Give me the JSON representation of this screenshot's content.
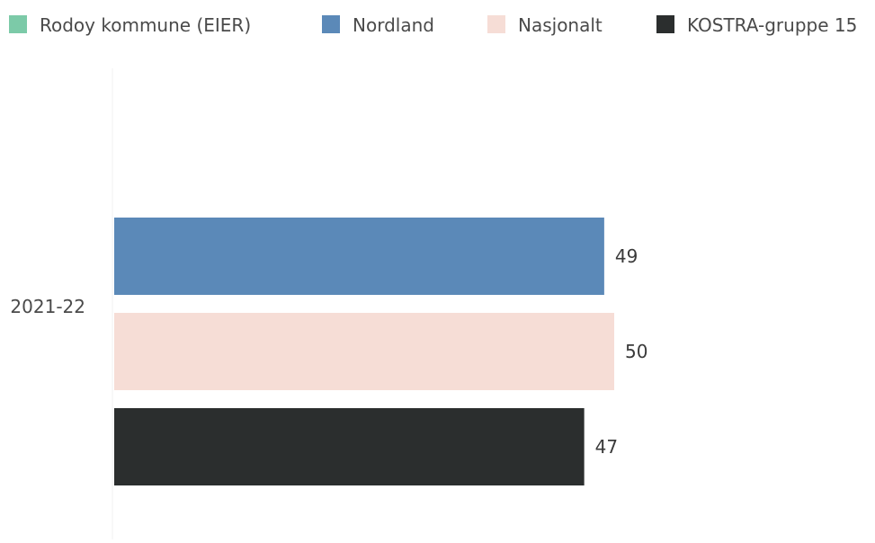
{
  "chart_data": {
    "type": "bar",
    "orientation": "horizontal",
    "categories": [
      "2021-22"
    ],
    "series": [
      {
        "name": "Rodoy kommune (EIER)",
        "color": "#7ccaa8",
        "values": [
          null
        ]
      },
      {
        "name": "Nordland",
        "color": "#5b89b8",
        "values": [
          49
        ]
      },
      {
        "name": "Nasjonalt",
        "color": "#f6ddd6",
        "values": [
          50
        ]
      },
      {
        "name": "KOSTRA-gruppe 15",
        "color": "#2b2e2e",
        "values": [
          47
        ]
      }
    ],
    "xlim": [
      0,
      50
    ],
    "grid": false,
    "legend_position": "top"
  }
}
